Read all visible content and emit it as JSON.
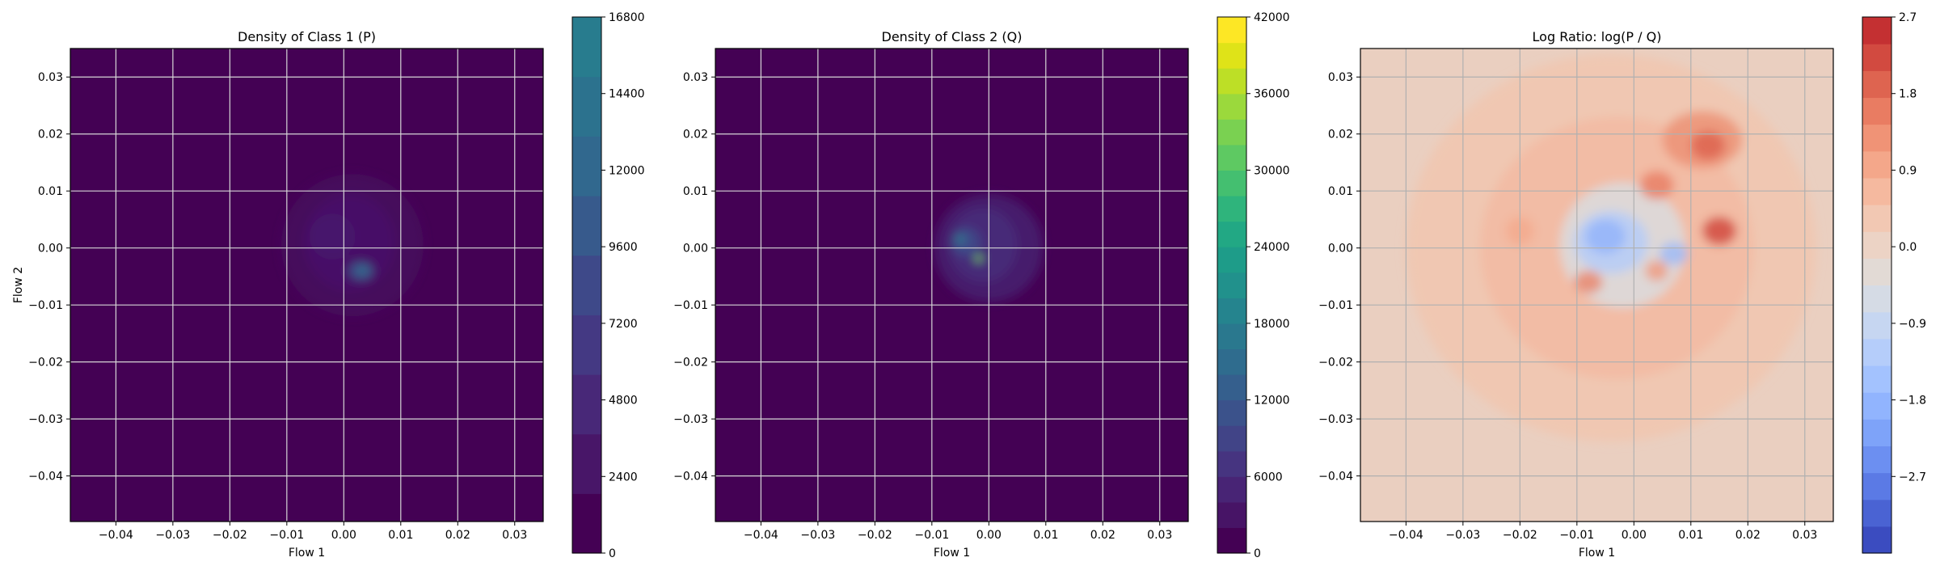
{
  "chart_data": [
    {
      "type": "heatmap",
      "title": "Density of Class 1 (P)",
      "xlabel": "Flow 1",
      "ylabel": "Flow 2",
      "xlim": [
        -0.048,
        0.035
      ],
      "ylim": [
        -0.048,
        0.035
      ],
      "x_ticks": [
        -0.04,
        -0.03,
        -0.02,
        -0.01,
        0.0,
        0.01,
        0.02,
        0.03
      ],
      "x_tick_labels": [
        "−0.04",
        "−0.03",
        "−0.02",
        "−0.01",
        "0.00",
        "0.01",
        "0.02",
        "0.03"
      ],
      "y_ticks": [
        -0.04,
        -0.03,
        -0.02,
        -0.01,
        0.0,
        0.01,
        0.02,
        0.03
      ],
      "y_tick_labels": [
        "−0.04",
        "−0.03",
        "−0.02",
        "−0.01",
        "0.00",
        "0.01",
        "0.02",
        "0.03"
      ],
      "grid": true,
      "colormap": "viridis",
      "background_color": "#440154",
      "colorbar": {
        "min": 0,
        "max": 16800,
        "ticks": [
          0,
          2400,
          4800,
          7200,
          9600,
          12000,
          14400,
          16800
        ],
        "tick_labels": [
          "0",
          "2400",
          "4800",
          "7200",
          "9600",
          "12000",
          "14400",
          "16800"
        ],
        "colors": [
          "#440154",
          "#481668",
          "#482878",
          "#443983",
          "#3e4989",
          "#375a8c",
          "#31688e",
          "#2c728e",
          "#287c8e"
        ]
      },
      "density_blobs": [
        {
          "x": 0.0015,
          "y": 0.0005,
          "rx": 0.0125,
          "ry": 0.0125,
          "color": "#46095d",
          "opacity": 0.9
        },
        {
          "x": 0.001,
          "y": 0.001,
          "rx": 0.008,
          "ry": 0.0085,
          "color": "#48106a",
          "opacity": 0.85
        },
        {
          "x": -0.002,
          "y": 0.002,
          "rx": 0.004,
          "ry": 0.004,
          "color": "#471a6e",
          "opacity": 0.6
        },
        {
          "x": 0.003,
          "y": -0.004,
          "rx": 0.0022,
          "ry": 0.0016,
          "color": "#3b528b",
          "opacity": 0.9
        },
        {
          "x": 0.0033,
          "y": -0.004,
          "rx": 0.001,
          "ry": 0.0008,
          "color": "#2c728e",
          "opacity": 0.9
        }
      ]
    },
    {
      "type": "heatmap",
      "title": "Density of Class 2 (Q)",
      "xlabel": "Flow 1",
      "ylabel": "",
      "xlim": [
        -0.048,
        0.035
      ],
      "ylim": [
        -0.048,
        0.035
      ],
      "x_ticks": [
        -0.04,
        -0.03,
        -0.02,
        -0.01,
        0.0,
        0.01,
        0.02,
        0.03
      ],
      "x_tick_labels": [
        "−0.04",
        "−0.03",
        "−0.02",
        "−0.01",
        "0.00",
        "0.01",
        "0.02",
        "0.03"
      ],
      "y_ticks": [
        -0.04,
        -0.03,
        -0.02,
        -0.01,
        0.0,
        0.01,
        0.02,
        0.03
      ],
      "y_tick_labels": [
        "−0.04",
        "−0.03",
        "−0.02",
        "−0.01",
        "0.00",
        "0.01",
        "0.02",
        "0.03"
      ],
      "grid": true,
      "colormap": "viridis",
      "background_color": "#440154",
      "colorbar": {
        "min": 0,
        "max": 42000,
        "ticks": [
          0,
          6000,
          12000,
          18000,
          24000,
          30000,
          36000,
          42000
        ],
        "tick_labels": [
          "0",
          "6000",
          "12000",
          "18000",
          "24000",
          "30000",
          "36000",
          "42000"
        ],
        "colors": [
          "#440154",
          "#471466",
          "#482475",
          "#463480",
          "#414487",
          "#3b528b",
          "#355f8d",
          "#2f6c8e",
          "#2a788e",
          "#25848e",
          "#21918c",
          "#1e9c89",
          "#22a884",
          "#2fb47c",
          "#44bf70",
          "#5ec962",
          "#7ad151",
          "#9bd93c",
          "#bddf26",
          "#dfe318",
          "#fde725"
        ]
      },
      "density_blobs": [
        {
          "x": 0.0,
          "y": 0.0,
          "rx": 0.0095,
          "ry": 0.0095,
          "color": "#471a6e",
          "opacity": 0.95
        },
        {
          "x": -0.001,
          "y": 0.0005,
          "rx": 0.006,
          "ry": 0.0065,
          "color": "#472c7a",
          "opacity": 0.9
        },
        {
          "x": -0.004,
          "y": 0.001,
          "rx": 0.0025,
          "ry": 0.0025,
          "color": "#3e4989",
          "opacity": 0.9
        },
        {
          "x": -0.005,
          "y": 0.0015,
          "rx": 0.0009,
          "ry": 0.0009,
          "color": "#2a788e",
          "opacity": 0.95
        },
        {
          "x": -0.0018,
          "y": -0.0018,
          "rx": 0.0006,
          "ry": 0.0006,
          "color": "#7ad151",
          "opacity": 1.0
        }
      ]
    },
    {
      "type": "heatmap",
      "title": "Log Ratio: log(P / Q)",
      "xlabel": "Flow 1",
      "ylabel": "",
      "xlim": [
        -0.048,
        0.035
      ],
      "ylim": [
        -0.048,
        0.035
      ],
      "x_ticks": [
        -0.04,
        -0.03,
        -0.02,
        -0.01,
        0.0,
        0.01,
        0.02,
        0.03
      ],
      "x_tick_labels": [
        "−0.04",
        "−0.03",
        "−0.02",
        "−0.01",
        "0.00",
        "0.01",
        "0.02",
        "0.03"
      ],
      "y_ticks": [
        -0.04,
        -0.03,
        -0.02,
        -0.01,
        0.0,
        0.01,
        0.02,
        0.03
      ],
      "y_tick_labels": [
        "−0.04",
        "−0.03",
        "−0.02",
        "−0.01",
        "0.00",
        "0.01",
        "0.02",
        "0.03"
      ],
      "grid": true,
      "colormap": "coolwarm",
      "background_color": "#eacfc0",
      "colorbar": {
        "min": -3.6,
        "max": 2.7,
        "ticks": [
          -2.7,
          -1.8,
          -0.9,
          0.0,
          0.9,
          1.8,
          2.7
        ],
        "tick_labels": [
          "−2.7",
          "−1.8",
          "−0.9",
          "0.0",
          "0.9",
          "1.8",
          "2.7"
        ],
        "colors": [
          "#3b4cc0",
          "#4a63d3",
          "#5b7ae5",
          "#6c8ff1",
          "#7ea3f9",
          "#91b4fe",
          "#a3c2fe",
          "#b5cdfa",
          "#c6d6f1",
          "#d5dbe5",
          "#e2dad5",
          "#ecd3c5",
          "#f2c8b3",
          "#f5b99f",
          "#f4a78a",
          "#f09376",
          "#e97c62",
          "#de6450",
          "#d24a40",
          "#c43032"
        ]
      },
      "density_blobs": [
        {
          "x": -0.004,
          "y": 0.0,
          "rx": 0.036,
          "ry": 0.034,
          "color": "#f2c4ad",
          "opacity": 0.7
        },
        {
          "x": -0.003,
          "y": 0.0,
          "rx": 0.024,
          "ry": 0.023,
          "color": "#f4b39a",
          "opacity": 0.55
        },
        {
          "x": -0.002,
          "y": 0.0005,
          "rx": 0.011,
          "ry": 0.011,
          "color": "#dcdadb",
          "opacity": 0.9
        },
        {
          "x": -0.004,
          "y": 0.001,
          "rx": 0.0065,
          "ry": 0.0055,
          "color": "#b7cdf6",
          "opacity": 0.9
        },
        {
          "x": -0.005,
          "y": 0.002,
          "rx": 0.0035,
          "ry": 0.003,
          "color": "#8fb0fb",
          "opacity": 0.75
        },
        {
          "x": 0.007,
          "y": -0.001,
          "rx": 0.0025,
          "ry": 0.002,
          "color": "#93b4fc",
          "opacity": 0.7
        },
        {
          "x": 0.012,
          "y": 0.019,
          "rx": 0.007,
          "ry": 0.005,
          "color": "#ec8f72",
          "opacity": 0.8
        },
        {
          "x": 0.013,
          "y": 0.018,
          "rx": 0.003,
          "ry": 0.0025,
          "color": "#de6450",
          "opacity": 0.85
        },
        {
          "x": 0.015,
          "y": 0.003,
          "rx": 0.003,
          "ry": 0.0025,
          "color": "#d24a40",
          "opacity": 0.85
        },
        {
          "x": 0.004,
          "y": 0.011,
          "rx": 0.003,
          "ry": 0.0025,
          "color": "#e97c62",
          "opacity": 0.8
        },
        {
          "x": -0.008,
          "y": -0.006,
          "rx": 0.0025,
          "ry": 0.002,
          "color": "#e97c62",
          "opacity": 0.75
        },
        {
          "x": 0.004,
          "y": -0.004,
          "rx": 0.002,
          "ry": 0.0018,
          "color": "#f09376",
          "opacity": 0.75
        },
        {
          "x": -0.02,
          "y": 0.003,
          "rx": 0.0025,
          "ry": 0.0025,
          "color": "#f4a78a",
          "opacity": 0.7
        }
      ]
    }
  ]
}
